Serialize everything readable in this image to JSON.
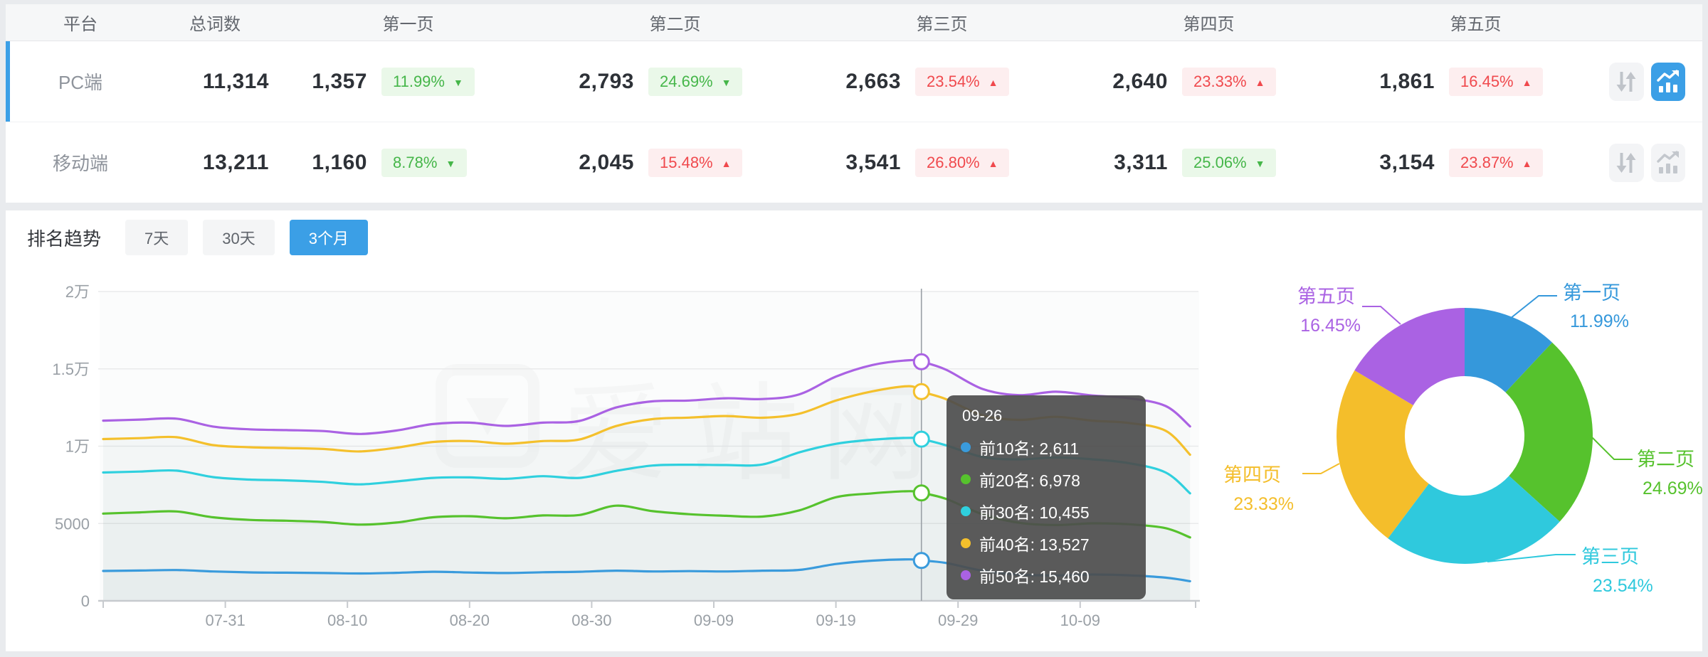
{
  "accent_color": "#3b9fe6",
  "page_background": "#e9ebee",
  "table": {
    "columns": [
      "平台",
      "总词数",
      "第一页",
      "第二页",
      "第三页",
      "第四页",
      "第五页"
    ],
    "rows": [
      {
        "platform": "PC端",
        "total": "11,314",
        "selected": true,
        "pages": [
          {
            "count": "1,357",
            "pct": "11.99%",
            "trend": "down",
            "tone": "green"
          },
          {
            "count": "2,793",
            "pct": "24.69%",
            "trend": "down",
            "tone": "green"
          },
          {
            "count": "2,663",
            "pct": "23.54%",
            "trend": "up",
            "tone": "red"
          },
          {
            "count": "2,640",
            "pct": "23.33%",
            "trend": "up",
            "tone": "red"
          },
          {
            "count": "1,861",
            "pct": "16.45%",
            "trend": "up",
            "tone": "red"
          }
        ],
        "sort_button_active": false,
        "chart_button_active": true
      },
      {
        "platform": "移动端",
        "total": "13,211",
        "selected": false,
        "pages": [
          {
            "count": "1,160",
            "pct": "8.78%",
            "trend": "down",
            "tone": "green"
          },
          {
            "count": "2,045",
            "pct": "15.48%",
            "trend": "up",
            "tone": "red"
          },
          {
            "count": "3,541",
            "pct": "26.80%",
            "trend": "up",
            "tone": "red"
          },
          {
            "count": "3,311",
            "pct": "25.06%",
            "trend": "down",
            "tone": "green"
          },
          {
            "count": "3,154",
            "pct": "23.87%",
            "trend": "up",
            "tone": "red"
          }
        ],
        "sort_button_active": false,
        "chart_button_active": false
      }
    ],
    "badge_colors": {
      "green_text": "#45b649",
      "green_bg": "#eaf8e9",
      "red_text": "#f0494d",
      "red_bg": "#fdeeef"
    }
  },
  "trend": {
    "title": "排名趋势",
    "tabs": [
      {
        "label": "7天",
        "active": false
      },
      {
        "label": "30天",
        "active": false
      },
      {
        "label": "3个月",
        "active": true
      }
    ]
  },
  "watermark": {
    "text": "爱站网"
  },
  "chart_data": [
    {
      "type": "line",
      "title": "排名趋势(3个月)",
      "x_tick_labels": [
        "07-31",
        "08-10",
        "08-20",
        "08-30",
        "09-09",
        "09-19",
        "09-29",
        "10-09"
      ],
      "tick_days": [
        10,
        20,
        30,
        40,
        50,
        60,
        70,
        80
      ],
      "y_tick_labels": [
        "0",
        "5000",
        "1万",
        "1.5万",
        "2万"
      ],
      "ylim": [
        0,
        20000
      ],
      "grid": true,
      "x_days": [
        0,
        3,
        6,
        9,
        12,
        15,
        18,
        21,
        24,
        27,
        30,
        33,
        36,
        39,
        42,
        45,
        48,
        51,
        54,
        57,
        60,
        63,
        66,
        67,
        69,
        72,
        75,
        78,
        81,
        84,
        87,
        89
      ],
      "series": [
        {
          "name": "前10名",
          "color": "#3a9bdc",
          "values": [
            1930,
            1960,
            1990,
            1900,
            1840,
            1820,
            1800,
            1770,
            1810,
            1880,
            1830,
            1800,
            1850,
            1880,
            1950,
            1900,
            1920,
            1900,
            1950,
            2000,
            2380,
            2600,
            2680,
            2611,
            2450,
            1950,
            1700,
            1640,
            1700,
            1650,
            1500,
            1270
          ]
        },
        {
          "name": "前20名",
          "color": "#56c22d",
          "values": [
            5640,
            5720,
            5780,
            5400,
            5230,
            5180,
            5100,
            4930,
            5060,
            5400,
            5470,
            5340,
            5520,
            5550,
            6150,
            5800,
            5600,
            5500,
            5450,
            5850,
            6700,
            6950,
            7090,
            6978,
            6600,
            5600,
            5050,
            4900,
            5010,
            4950,
            4700,
            4100
          ]
        },
        {
          "name": "前30名",
          "color": "#2fd0de",
          "values": [
            8300,
            8360,
            8420,
            8000,
            7840,
            7790,
            7690,
            7530,
            7720,
            7950,
            7980,
            7890,
            8060,
            7950,
            8400,
            8750,
            8800,
            8780,
            8820,
            9600,
            10150,
            10420,
            10540,
            10455,
            10060,
            9300,
            9150,
            9270,
            9150,
            8900,
            8300,
            6950
          ]
        },
        {
          "name": "前40名",
          "color": "#f4c02c",
          "values": [
            10460,
            10520,
            10580,
            10070,
            9930,
            9880,
            9820,
            9660,
            9900,
            10270,
            10330,
            10160,
            10330,
            10430,
            11300,
            11750,
            11850,
            11950,
            11840,
            12100,
            12950,
            13550,
            13880,
            13527,
            13050,
            12000,
            11700,
            11900,
            11650,
            11500,
            11000,
            9450
          ]
        },
        {
          "name": "前50名",
          "color": "#aa62e3",
          "values": [
            11650,
            11720,
            11780,
            11270,
            11090,
            11040,
            10980,
            10790,
            11010,
            11430,
            11520,
            11310,
            11520,
            11630,
            12500,
            12900,
            12950,
            13100,
            13050,
            13350,
            14500,
            15250,
            15560,
            15460,
            14950,
            13700,
            13300,
            13520,
            13280,
            13100,
            12600,
            11280
          ]
        }
      ],
      "tooltip": {
        "title": "09-26",
        "day": 67,
        "items": [
          {
            "label": "前10名",
            "value": 2611,
            "value_display": "2,611",
            "color": "#3a9bdc"
          },
          {
            "label": "前20名",
            "value": 6978,
            "value_display": "6,978",
            "color": "#56c22d"
          },
          {
            "label": "前30名",
            "value": 10455,
            "value_display": "10,455",
            "color": "#2fd0de"
          },
          {
            "label": "前40名",
            "value": 13527,
            "value_display": "13,527",
            "color": "#f4c02c"
          },
          {
            "label": "前50名",
            "value": 15460,
            "value_display": "15,460",
            "color": "#aa62e3"
          }
        ]
      }
    },
    {
      "type": "pie",
      "donut": true,
      "legend_position": "labels-with-leader-lines",
      "slices": [
        {
          "label": "第一页",
          "pct": 11.99,
          "pct_display": "11.99%",
          "color": "#3598db"
        },
        {
          "label": "第二页",
          "pct": 24.69,
          "pct_display": "24.69%",
          "color": "#56c22d"
        },
        {
          "label": "第三页",
          "pct": 23.54,
          "pct_display": "23.54%",
          "color": "#2fc9dd"
        },
        {
          "label": "第四页",
          "pct": 23.33,
          "pct_display": "23.33%",
          "color": "#f4be2b"
        },
        {
          "label": "第五页",
          "pct": 16.45,
          "pct_display": "16.45%",
          "color": "#aa62e3"
        }
      ]
    }
  ]
}
